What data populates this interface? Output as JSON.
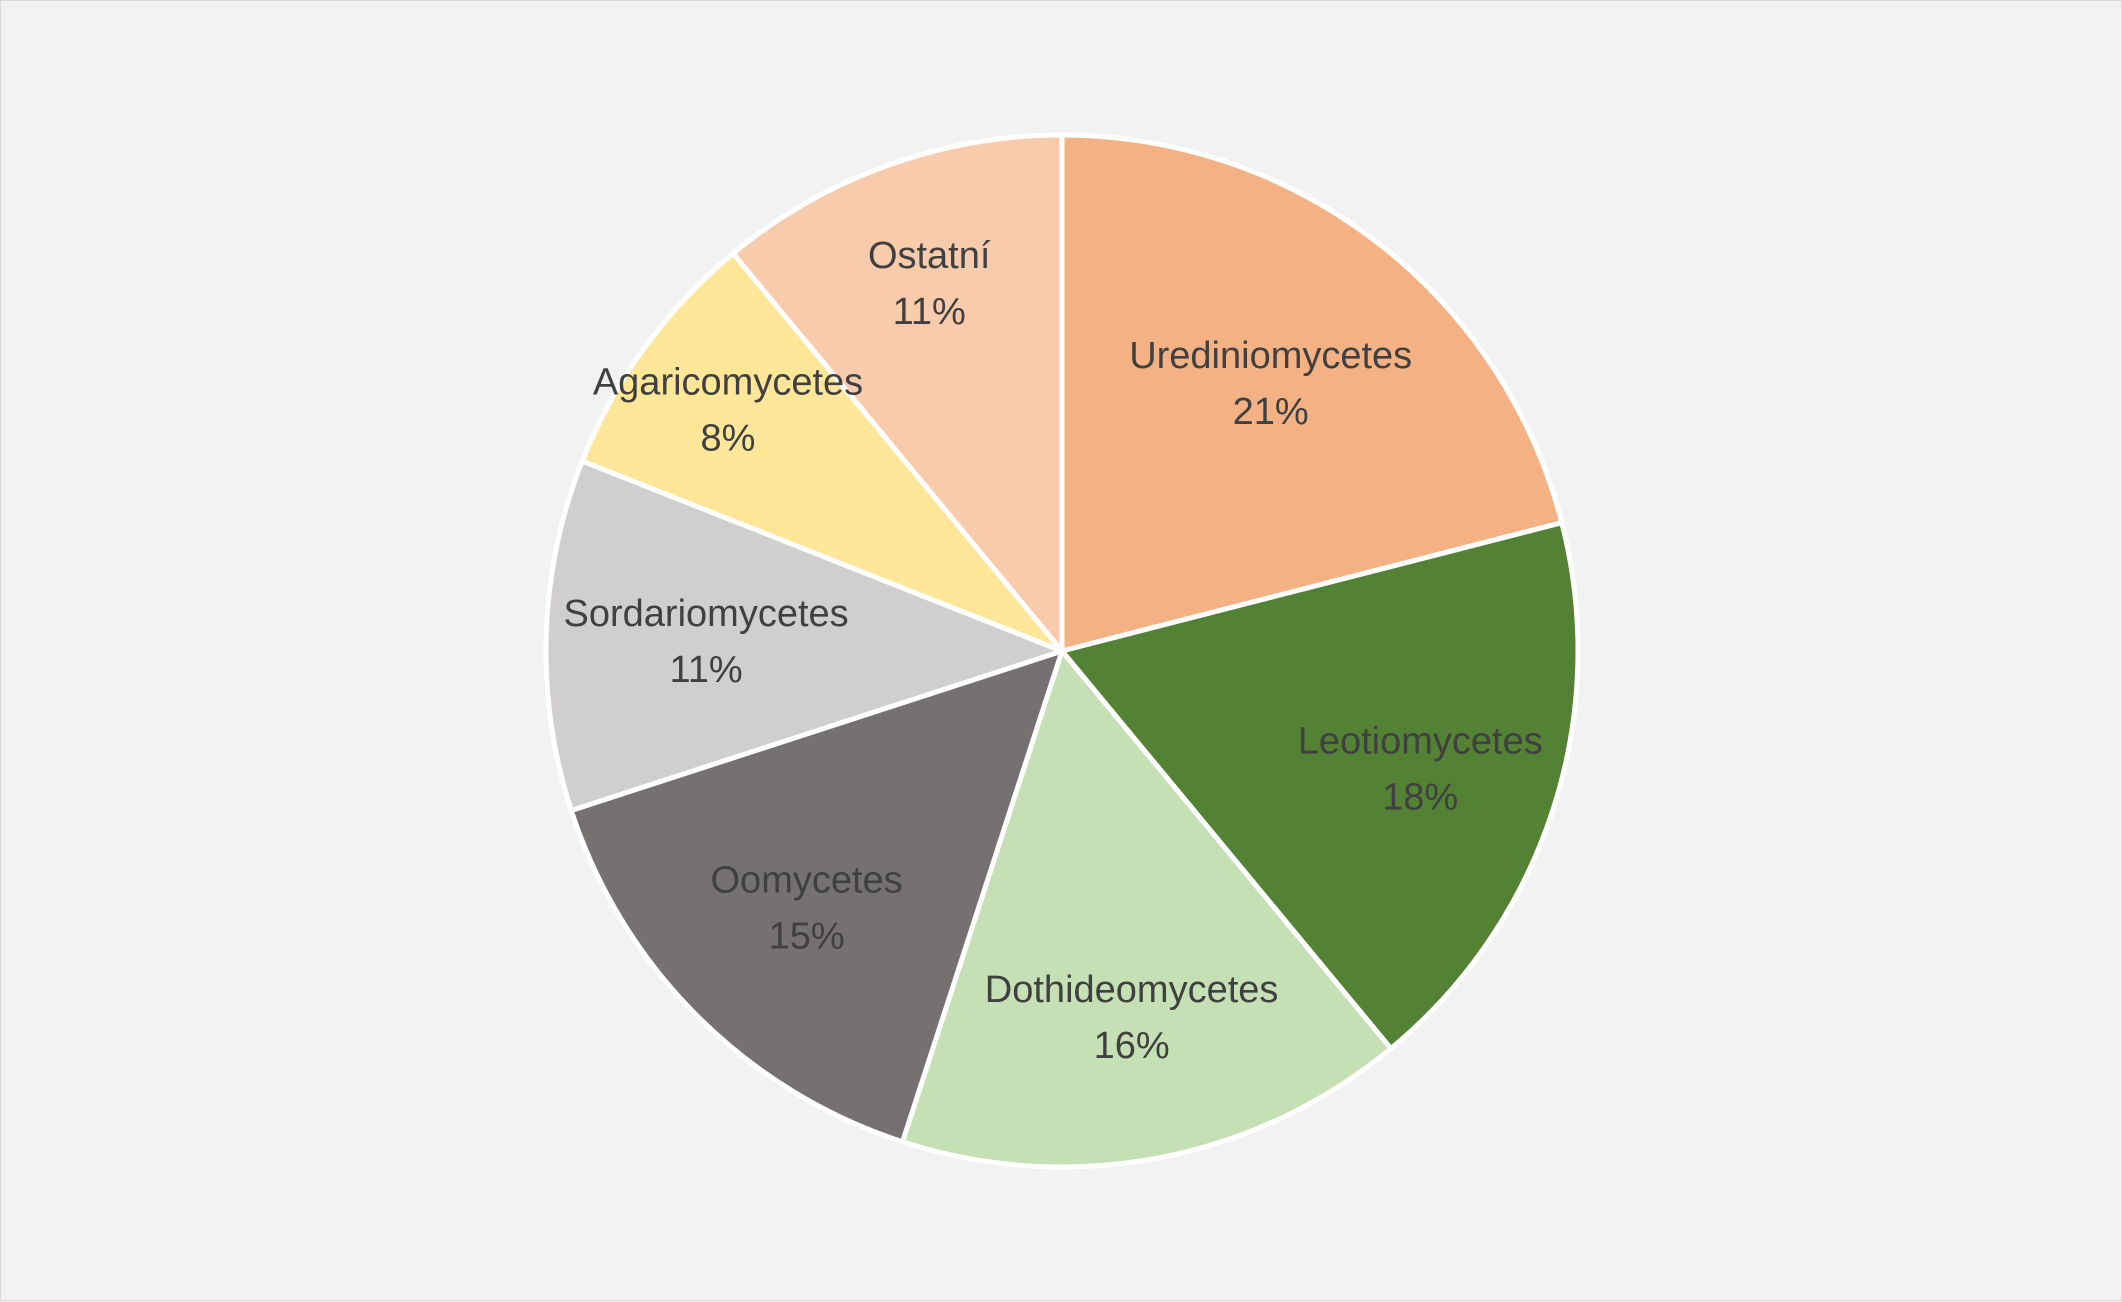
{
  "chart_data": {
    "type": "pie",
    "title": "",
    "legend": "none",
    "start_angle_deg": 0,
    "direction": "clockwise",
    "slices": [
      {
        "name": "Urediniomycetes",
        "value": 21,
        "label": "21%",
        "color": "#f4b183"
      },
      {
        "name": "Leotiomycetes",
        "value": 18,
        "label": "18%",
        "color": "#548235"
      },
      {
        "name": "Dothideomycetes",
        "value": 16,
        "label": "16%",
        "color": "#c5e0b4"
      },
      {
        "name": "Oomycetes",
        "value": 15,
        "label": "15%",
        "color": "#757171"
      },
      {
        "name": "Sordariomycetes",
        "value": 11,
        "label": "11%",
        "color": "#d0cece"
      },
      {
        "name": "Agaricomycetes",
        "value": 8,
        "label": "8%",
        "color": "#ffe699"
      },
      {
        "name": "Ostatní",
        "value": 11,
        "label": "11%",
        "color": "#f8cbad"
      }
    ]
  }
}
